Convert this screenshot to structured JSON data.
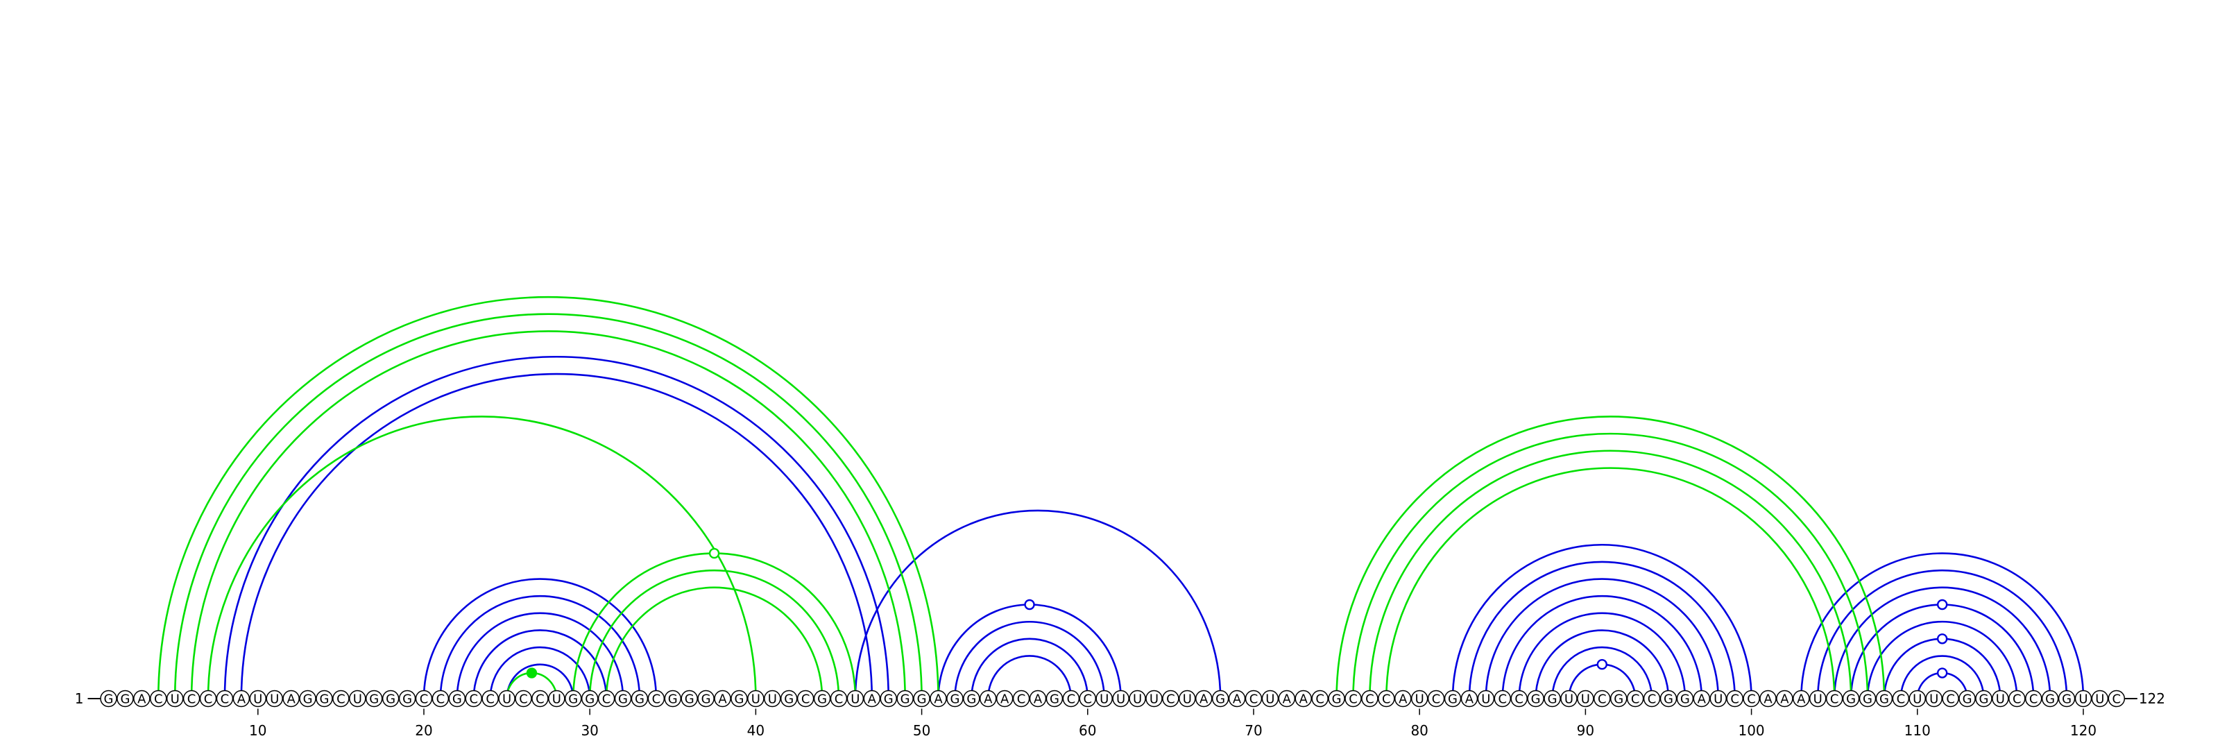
{
  "sequence": "GGACUCCCAUUAGGCUGGGCCGCCUCCUGGCGGCGGGAGUUGCGCUAGGGAGGAACAGCCUUUUCUAGACUAACGCCCAUCGAUCCGGUUCGCCGGAUCCAAAUCGGGCUUCGGUCCGGUUC",
  "start_label": "1",
  "end_label": "122",
  "ticks": [
    "10",
    "20",
    "30",
    "40",
    "50",
    "60",
    "70",
    "80",
    "90",
    "100",
    "110",
    "120"
  ],
  "tick_positions": [
    10,
    20,
    30,
    40,
    50,
    60,
    70,
    80,
    90,
    100,
    110,
    120
  ],
  "colors": {
    "blue": "#0000e0",
    "green": "#00e000",
    "backbone": "#000000",
    "nucleotide_fill": "#ffffff"
  },
  "arcs_blue": [
    [
      8,
      48
    ],
    [
      9,
      47
    ],
    [
      20,
      34
    ],
    [
      21,
      33
    ],
    [
      22,
      32
    ],
    [
      23,
      31
    ],
    [
      24,
      30
    ],
    [
      25,
      29
    ],
    [
      46,
      68
    ],
    [
      51,
      62
    ],
    [
      52,
      61
    ],
    [
      53,
      60
    ],
    [
      54,
      59
    ],
    [
      82,
      100
    ],
    [
      83,
      99
    ],
    [
      84,
      98
    ],
    [
      85,
      97
    ],
    [
      86,
      96
    ],
    [
      87,
      95
    ],
    [
      88,
      94
    ],
    [
      89,
      93
    ],
    [
      103,
      120
    ],
    [
      104,
      119
    ],
    [
      105,
      118
    ],
    [
      106,
      117
    ],
    [
      107,
      116
    ],
    [
      108,
      115
    ],
    [
      109,
      114
    ],
    [
      110,
      113
    ]
  ],
  "arcs_green": [
    [
      4,
      51
    ],
    [
      5,
      50
    ],
    [
      6,
      49
    ],
    [
      7,
      40
    ],
    [
      25,
      28
    ],
    [
      29,
      46
    ],
    [
      30,
      45
    ],
    [
      31,
      44
    ],
    [
      75,
      108
    ],
    [
      76,
      107
    ],
    [
      77,
      106
    ],
    [
      78,
      105
    ]
  ],
  "loop_markers": [
    {
      "pos": 27,
      "color": "green",
      "filled": true,
      "height": 0.5
    },
    {
      "pos": 38,
      "color": "green",
      "filled": false,
      "height": 0.9
    },
    {
      "pos": 56,
      "color": "blue",
      "filled": false,
      "height": 0.9
    },
    {
      "pos": 91,
      "color": "blue",
      "filled": false,
      "height": 0.5
    },
    {
      "pos": 112,
      "color": "blue",
      "filled": false,
      "height": 0.5
    },
    {
      "pos": 112,
      "color": "blue",
      "filled": false,
      "height": 1.0
    },
    {
      "pos": 112,
      "color": "blue",
      "filled": false,
      "height": 1.0
    }
  ]
}
